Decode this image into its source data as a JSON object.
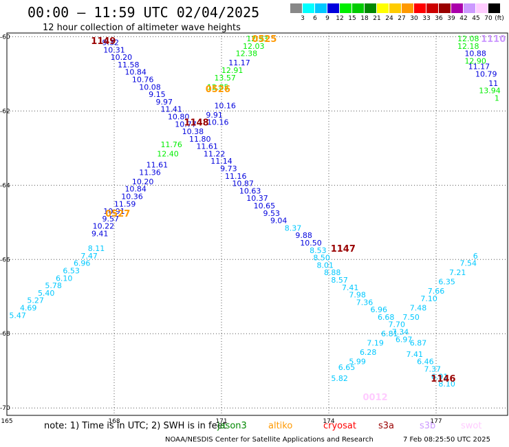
{
  "header": {
    "title": "00:00 – 11:59 UTC 02/04/2025",
    "subtitle": "12 hour collection of altimeter wave heights"
  },
  "legend": {
    "boxes": [
      {
        "color": "#888888",
        "label": "3"
      },
      {
        "color": "#00ffff",
        "label": "6"
      },
      {
        "color": "#00c8ff",
        "label": "9"
      },
      {
        "color": "#0000dd",
        "label": "12"
      },
      {
        "color": "#00ee00",
        "label": "15"
      },
      {
        "color": "#00cc00",
        "label": "18"
      },
      {
        "color": "#008800",
        "label": "21"
      },
      {
        "color": "#ffff00",
        "label": "24"
      },
      {
        "color": "#ffcc00",
        "label": "27"
      },
      {
        "color": "#ff9900",
        "label": "30"
      },
      {
        "color": "#ff0000",
        "label": "33"
      },
      {
        "color": "#cc0000",
        "label": "36"
      },
      {
        "color": "#990000",
        "label": "39"
      },
      {
        "color": "#aa00aa",
        "label": "42"
      },
      {
        "color": "#cc99ff",
        "label": "45"
      },
      {
        "color": "#ffccff",
        "label": "70"
      },
      {
        "color": "#000000",
        "label": ""
      }
    ],
    "unit": "(ft)"
  },
  "footer": {
    "note": "note: 1) Time is in UTC; 2) SWH is in feet",
    "satellites": [
      {
        "name": "jason3",
        "color": "#008800"
      },
      {
        "name": "altiko",
        "color": "#ff9900"
      },
      {
        "name": "cryosat",
        "color": "#ff0000"
      },
      {
        "name": "s3a",
        "color": "#990000"
      },
      {
        "name": "s3b",
        "color": "#cc99ff"
      },
      {
        "name": "swot",
        "color": "#ffccff"
      }
    ],
    "credit": "NOAA/NESDIS Center for Satellite Applications and Research",
    "timestamp": "7 Feb 08:25:50 UTC 2025"
  },
  "chart_data": {
    "type": "scatter",
    "title": "",
    "xlabel": "",
    "ylabel": "",
    "xlim": [
      165,
      179
    ],
    "ylim": [
      -70.2,
      -59.9
    ],
    "x_ticks": [
      {
        "v": 165,
        "label": "165"
      },
      {
        "v": 168,
        "label": "168"
      },
      {
        "v": 171,
        "label": "171"
      },
      {
        "v": 174,
        "label": "174"
      },
      {
        "v": 177,
        "label": "177"
      }
    ],
    "y_ticks": [
      {
        "v": -60,
        "label": "-60"
      },
      {
        "v": -62,
        "label": "-62"
      },
      {
        "v": -64,
        "label": "-64"
      },
      {
        "v": -66,
        "label": "-66"
      },
      {
        "v": -68,
        "label": "-68"
      },
      {
        "v": -70,
        "label": "-70"
      }
    ],
    "grid": true,
    "passes": [
      {
        "id": "1149",
        "color": "#990000",
        "x": 167.7,
        "y": -60.1
      },
      {
        "id": "0525",
        "color": "#ff9900",
        "x": 172.2,
        "y": -60.05
      },
      {
        "id": "0526",
        "color": "#ff9900",
        "x": 170.9,
        "y": -61.4
      },
      {
        "id": "1148",
        "color": "#990000",
        "x": 170.3,
        "y": -62.3
      },
      {
        "id": "0527",
        "color": "#ff9900",
        "x": 168.1,
        "y": -64.75
      },
      {
        "id": "1147",
        "color": "#990000",
        "x": 174.4,
        "y": -65.7
      },
      {
        "id": "1110",
        "color": "#cc99ff",
        "x": 178.6,
        "y": -60.05
      },
      {
        "id": "1146",
        "color": "#990000",
        "x": 177.2,
        "y": -69.2
      },
      {
        "id": "0012",
        "color": "#ffccff",
        "x": 175.3,
        "y": -69.7
      }
    ],
    "series": [
      {
        "color": "#0000dd",
        "points": [
          {
            "x": 167.9,
            "y": -60.15,
            "v": "9.32"
          },
          {
            "x": 168.0,
            "y": -60.35,
            "v": "10.31"
          },
          {
            "x": 168.2,
            "y": -60.55,
            "v": "10.20"
          },
          {
            "x": 168.4,
            "y": -60.75,
            "v": "11.58"
          },
          {
            "x": 168.6,
            "y": -60.95,
            "v": "10.84"
          },
          {
            "x": 168.8,
            "y": -61.15,
            "v": "10.76"
          },
          {
            "x": 169.0,
            "y": -61.35,
            "v": "10.08"
          },
          {
            "x": 169.2,
            "y": -61.55,
            "v": "9.15"
          },
          {
            "x": 169.4,
            "y": -61.75,
            "v": "9.97"
          },
          {
            "x": 169.6,
            "y": -61.95,
            "v": "11.41"
          },
          {
            "x": 169.8,
            "y": -62.15,
            "v": "10.80"
          },
          {
            "x": 170.0,
            "y": -62.35,
            "v": "10.77"
          },
          {
            "x": 170.2,
            "y": -62.55,
            "v": "10.38"
          },
          {
            "x": 170.4,
            "y": -62.75,
            "v": "11.80"
          },
          {
            "x": 170.6,
            "y": -62.95,
            "v": "11.61"
          },
          {
            "x": 170.8,
            "y": -63.15,
            "v": "11.22"
          },
          {
            "x": 171.0,
            "y": -63.35,
            "v": "11.14"
          },
          {
            "x": 171.2,
            "y": -63.55,
            "v": "9.73"
          },
          {
            "x": 171.4,
            "y": -63.75,
            "v": "11.16"
          },
          {
            "x": 171.6,
            "y": -63.95,
            "v": "10.87"
          },
          {
            "x": 171.8,
            "y": -64.15,
            "v": "10.63"
          },
          {
            "x": 172.0,
            "y": -64.35,
            "v": "10.37"
          },
          {
            "x": 172.2,
            "y": -64.55,
            "v": "10.65"
          },
          {
            "x": 172.4,
            "y": -64.75,
            "v": "9.53"
          },
          {
            "x": 172.6,
            "y": -64.95,
            "v": "9.04"
          },
          {
            "x": 173.3,
            "y": -65.35,
            "v": "9.88"
          },
          {
            "x": 173.5,
            "y": -65.55,
            "v": "10.50"
          }
        ]
      },
      {
        "color": "#00c8ff",
        "points": [
          {
            "x": 173.0,
            "y": -65.15,
            "v": "8.37"
          },
          {
            "x": 173.7,
            "y": -65.75,
            "v": "8.53"
          },
          {
            "x": 173.8,
            "y": -65.95,
            "v": "8.50"
          },
          {
            "x": 173.9,
            "y": -66.15,
            "v": "8.01"
          },
          {
            "x": 174.1,
            "y": -66.35,
            "v": "8.88"
          },
          {
            "x": 174.3,
            "y": -66.55,
            "v": "8.57"
          },
          {
            "x": 174.6,
            "y": -66.75,
            "v": "7.41"
          },
          {
            "x": 174.8,
            "y": -66.95,
            "v": "7.98"
          },
          {
            "x": 175.0,
            "y": -67.15,
            "v": "7.36"
          },
          {
            "x": 175.4,
            "y": -67.35,
            "v": "6.96"
          },
          {
            "x": 175.6,
            "y": -67.55,
            "v": "6.68"
          },
          {
            "x": 175.9,
            "y": -67.75,
            "v": "7.70"
          },
          {
            "x": 176.0,
            "y": -67.95,
            "v": "7.34"
          },
          {
            "x": 176.1,
            "y": -68.15,
            "v": "6.97"
          },
          {
            "x": 176.5,
            "y": -68.25,
            "v": "6.87"
          },
          {
            "x": 176.4,
            "y": -68.55,
            "v": "7.41"
          },
          {
            "x": 176.7,
            "y": -68.75,
            "v": "6.46"
          },
          {
            "x": 176.9,
            "y": -68.95,
            "v": "7.37"
          },
          {
            "x": 177.1,
            "y": -69.15,
            "v": "6.91"
          },
          {
            "x": 177.3,
            "y": -69.35,
            "v": "8.10"
          },
          {
            "x": 167.5,
            "y": -65.7,
            "v": "8.11"
          },
          {
            "x": 167.3,
            "y": -65.9,
            "v": "7.47"
          },
          {
            "x": 167.1,
            "y": -66.1,
            "v": "6.96"
          },
          {
            "x": 166.8,
            "y": -66.3,
            "v": "6.53"
          },
          {
            "x": 166.6,
            "y": -66.5,
            "v": "6.10"
          },
          {
            "x": 166.3,
            "y": -66.7,
            "v": "5.78"
          },
          {
            "x": 166.1,
            "y": -66.9,
            "v": "5.40"
          },
          {
            "x": 165.8,
            "y": -67.1,
            "v": "5.27"
          },
          {
            "x": 165.6,
            "y": -67.3,
            "v": "4.69"
          },
          {
            "x": 165.3,
            "y": -67.5,
            "v": "5.47"
          },
          {
            "x": 175.7,
            "y": -68.0,
            "v": "6.81"
          },
          {
            "x": 175.3,
            "y": -68.25,
            "v": "7.19"
          },
          {
            "x": 175.1,
            "y": -68.5,
            "v": "6.28"
          },
          {
            "x": 174.8,
            "y": -68.75,
            "v": "5.99"
          },
          {
            "x": 174.5,
            "y": -68.9,
            "v": "6.65"
          },
          {
            "x": 174.3,
            "y": -69.2,
            "v": "5.82"
          },
          {
            "x": 176.3,
            "y": -67.55,
            "v": "7.50"
          },
          {
            "x": 176.5,
            "y": -67.3,
            "v": "7.48"
          },
          {
            "x": 176.8,
            "y": -67.05,
            "v": "7.10"
          },
          {
            "x": 177.0,
            "y": -66.85,
            "v": "7.66"
          },
          {
            "x": 177.3,
            "y": -66.6,
            "v": "6.35"
          },
          {
            "x": 177.6,
            "y": -66.35,
            "v": "7.21"
          },
          {
            "x": 177.9,
            "y": -66.1,
            "v": "7.54"
          },
          {
            "x": 178.1,
            "y": -65.9,
            "v": "6"
          }
        ]
      },
      {
        "color": "#0000dd",
        "points": [
          {
            "x": 167.9,
            "y": -64.9,
            "v": "9.57"
          },
          {
            "x": 168.0,
            "y": -64.7,
            "v": "10.91"
          },
          {
            "x": 167.7,
            "y": -65.1,
            "v": "10.22"
          },
          {
            "x": 167.6,
            "y": -65.3,
            "v": "9.41"
          },
          {
            "x": 168.3,
            "y": -64.5,
            "v": "11.59"
          },
          {
            "x": 168.5,
            "y": -64.3,
            "v": "10.36"
          },
          {
            "x": 168.6,
            "y": -64.1,
            "v": "10.84"
          },
          {
            "x": 168.8,
            "y": -63.9,
            "v": "10.20"
          },
          {
            "x": 169.0,
            "y": -63.65,
            "v": "11.36"
          },
          {
            "x": 169.2,
            "y": -63.45,
            "v": "11.61"
          },
          {
            "x": 170.9,
            "y": -62.3,
            "v": "10.16"
          },
          {
            "x": 170.8,
            "y": -62.1,
            "v": "9.91"
          },
          {
            "x": 171.1,
            "y": -61.85,
            "v": "10.16"
          },
          {
            "x": 171.5,
            "y": -60.7,
            "v": "11.17"
          },
          {
            "x": 178.1,
            "y": -60.45,
            "v": "10.88"
          },
          {
            "x": 178.2,
            "y": -60.8,
            "v": "11.17"
          },
          {
            "x": 178.4,
            "y": -61.0,
            "v": "10.79"
          },
          {
            "x": 178.6,
            "y": -61.25,
            "v": "11"
          }
        ]
      },
      {
        "color": "#00ee00",
        "points": [
          {
            "x": 172.0,
            "y": -60.05,
            "v": "12.93"
          },
          {
            "x": 171.9,
            "y": -60.25,
            "v": "12.03"
          },
          {
            "x": 171.7,
            "y": -60.45,
            "v": "12.38"
          },
          {
            "x": 171.3,
            "y": -60.9,
            "v": "12.91"
          },
          {
            "x": 171.1,
            "y": -61.1,
            "v": "13.57"
          },
          {
            "x": 170.9,
            "y": -61.35,
            "v": "12.85"
          },
          {
            "x": 169.6,
            "y": -62.9,
            "v": "11.76"
          },
          {
            "x": 169.5,
            "y": -63.15,
            "v": "12.40"
          },
          {
            "x": 177.9,
            "y": -60.05,
            "v": "12.08"
          },
          {
            "x": 177.9,
            "y": -60.25,
            "v": "12.18"
          },
          {
            "x": 178.1,
            "y": -60.65,
            "v": "12.90"
          },
          {
            "x": 178.5,
            "y": -61.45,
            "v": "13.94"
          },
          {
            "x": 178.7,
            "y": -61.65,
            "v": "1"
          }
        ]
      }
    ]
  }
}
